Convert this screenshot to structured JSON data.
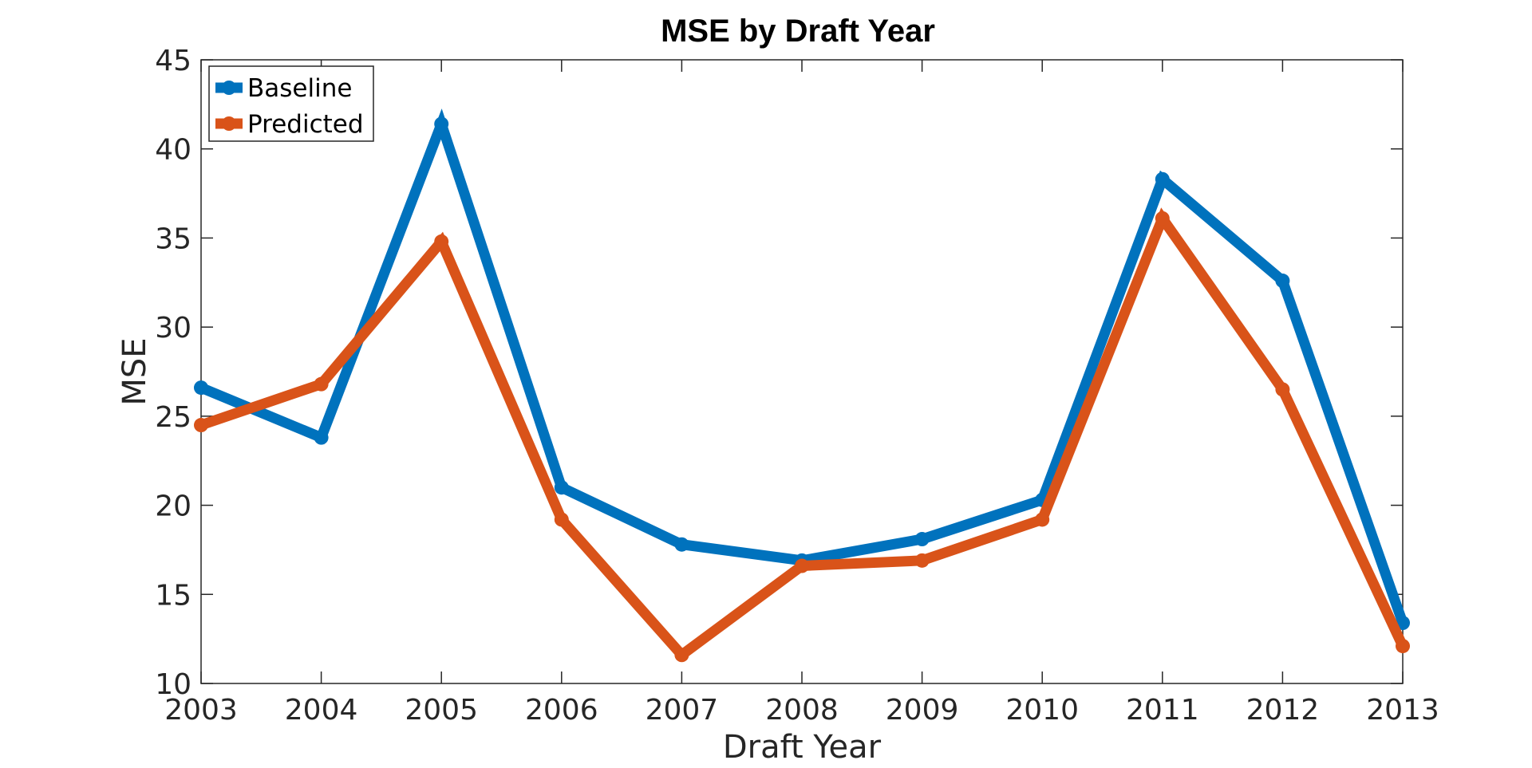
{
  "chart_data": {
    "type": "line",
    "title": "MSE by Draft Year",
    "xlabel": "Draft Year",
    "ylabel": "MSE",
    "x": [
      2003,
      2004,
      2005,
      2006,
      2007,
      2008,
      2009,
      2010,
      2011,
      2012,
      2013
    ],
    "xlim": [
      2003,
      2013
    ],
    "ylim": [
      10,
      45
    ],
    "yticks": [
      10,
      15,
      20,
      25,
      30,
      35,
      40,
      45
    ],
    "grid": false,
    "legend_position": "top-left",
    "series": [
      {
        "name": "Baseline",
        "color": "#0072BD",
        "values": [
          26.6,
          23.8,
          41.4,
          21.0,
          17.8,
          16.9,
          18.1,
          20.3,
          38.3,
          32.6,
          13.4
        ]
      },
      {
        "name": "Predicted",
        "color": "#D95319",
        "values": [
          24.5,
          26.8,
          34.8,
          19.2,
          11.6,
          16.6,
          16.9,
          19.2,
          36.1,
          26.5,
          12.1
        ]
      }
    ]
  }
}
